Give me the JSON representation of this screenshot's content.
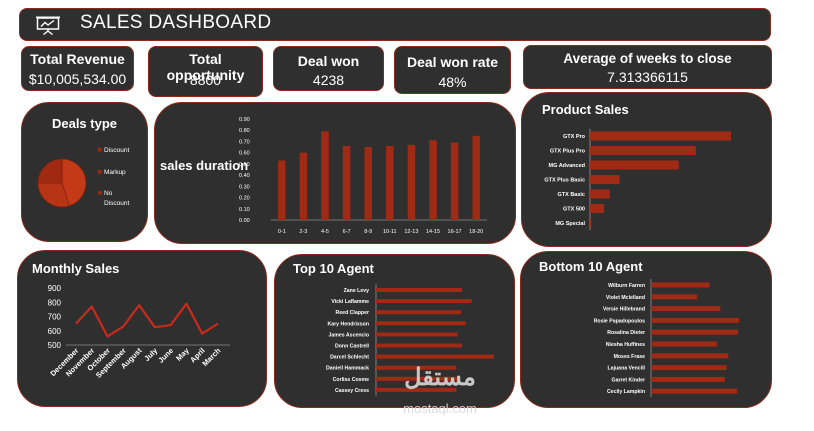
{
  "header": {
    "title": "SALES DASHBOARD"
  },
  "kpis": [
    {
      "label": "Total Revenue",
      "value": "$10,005,534.00"
    },
    {
      "label": "Total opportunity",
      "value": "8800"
    },
    {
      "label": "Deal won",
      "value": "4238"
    },
    {
      "label": "Deal won rate",
      "value": "48%"
    },
    {
      "label": "Average of weeks to close",
      "value": "7.313366115"
    }
  ],
  "colors": {
    "bar": "#a02a14",
    "card": "#2f2f2f",
    "border": "#8a2a1a"
  },
  "watermark": {
    "arabic": "مستقل",
    "latin": "mostaql.com"
  },
  "chart_data": [
    {
      "id": "deals-type",
      "type": "pie",
      "title": "Deals type",
      "categories": [
        "Discount",
        "Markup",
        "No Discount"
      ],
      "values": [
        45,
        30,
        25
      ],
      "legend": "right"
    },
    {
      "id": "sales-duration",
      "type": "bar",
      "title": "sales duration",
      "categories": [
        "0-1",
        "2-3",
        "4-5",
        "6-7",
        "8-9",
        "10-11",
        "12-13",
        "14-15",
        "16-17",
        "18-20"
      ],
      "values": [
        0.53,
        0.6,
        0.79,
        0.66,
        0.65,
        0.66,
        0.67,
        0.71,
        0.69,
        0.75
      ],
      "ylim": [
        0,
        0.9
      ],
      "yticks": [
        "0.00",
        "0.10",
        "0.20",
        "0.30",
        "0.40",
        "0.50",
        "0.60",
        "0.70",
        "0.80",
        "0.90"
      ]
    },
    {
      "id": "product-sales",
      "type": "bar",
      "orientation": "horizontal",
      "title": "Product Sales",
      "categories": [
        "GTX Pro",
        "GTX Plus Pro",
        "MG Advanced",
        "GTX Plus Basic",
        "GTX Basic",
        "GTX 500",
        "MG Special"
      ],
      "values": [
        100,
        75,
        63,
        21,
        14,
        10,
        1
      ]
    },
    {
      "id": "monthly-sales",
      "type": "line",
      "title": "Monthly Sales",
      "categories": [
        "December",
        "November",
        "October",
        "September",
        "August",
        "July",
        "June",
        "May",
        "April",
        "March"
      ],
      "values": [
        650,
        770,
        560,
        630,
        780,
        625,
        640,
        790,
        580,
        650
      ],
      "ylim": [
        500,
        900
      ],
      "yticks": [
        "500",
        "600",
        "700",
        "800",
        "900"
      ]
    },
    {
      "id": "top-10-agent",
      "type": "bar",
      "orientation": "horizontal",
      "title": "Top 10 Agent",
      "categories": [
        "Zane Levy",
        "Vicki Laflamme",
        "Reed Clapper",
        "Kary Hendrixson",
        "James Ascencio",
        "Donn Cantrell",
        "Darcel Schlecht",
        "Daniell Hammack",
        "Corliss Cosme",
        "Cassey Cress"
      ],
      "values": [
        73,
        81,
        72,
        76,
        69,
        73,
        100,
        68,
        71,
        68
      ]
    },
    {
      "id": "bottom-10-agent",
      "type": "bar",
      "orientation": "horizontal",
      "title": "Bottom 10 Agent",
      "categories": [
        "Wilburn Farren",
        "Violet Mclelland",
        "Versie Hillebrand",
        "Rosie Papadopoulos",
        "Rosalina Dieter",
        "Niesha Huffines",
        "Moses Frase",
        "Lajuana Vencill",
        "Garret Kinder",
        "Cecily Lampkin"
      ],
      "values": [
        66,
        52,
        78,
        99,
        98,
        74,
        87,
        85,
        83,
        97
      ]
    }
  ]
}
